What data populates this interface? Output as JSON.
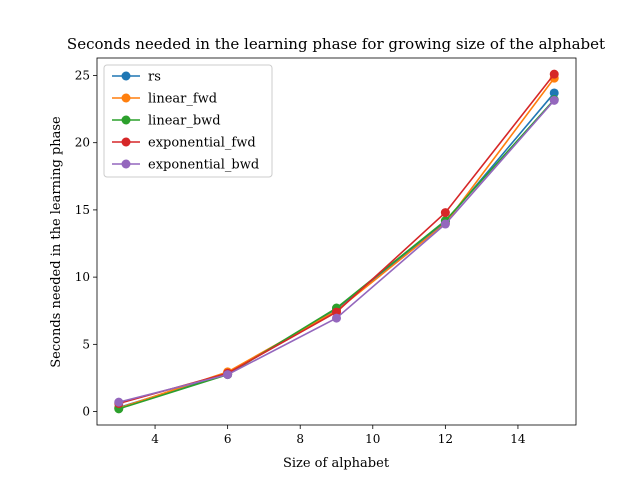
{
  "chart_data": {
    "type": "line",
    "title": "Seconds needed in the learning phase for growing size of the alphabet",
    "xlabel": "Size of alphabet",
    "ylabel": "Seconds needed in the learning phase",
    "xlim": [
      2.4,
      15.6
    ],
    "ylim": [
      -1.0,
      26.3
    ],
    "xticks": [
      4,
      6,
      8,
      10,
      12,
      14
    ],
    "yticks": [
      0,
      5,
      10,
      15,
      20,
      25
    ],
    "grid": false,
    "legend_position": "upper-left",
    "x": [
      3,
      6,
      9,
      12,
      15
    ],
    "series": [
      {
        "name": "rs",
        "color": "#1f77b4",
        "values": [
          0.3,
          2.8,
          7.6,
          14.1,
          23.7
        ]
      },
      {
        "name": "linear_fwd",
        "color": "#ff7f0e",
        "values": [
          0.25,
          2.95,
          7.5,
          14.0,
          24.8
        ]
      },
      {
        "name": "linear_bwd",
        "color": "#2ca02c",
        "values": [
          0.2,
          2.75,
          7.7,
          14.2,
          23.2
        ]
      },
      {
        "name": "exponential_fwd",
        "color": "#d62728",
        "values": [
          0.6,
          2.85,
          7.4,
          14.8,
          25.1
        ]
      },
      {
        "name": "exponential_bwd",
        "color": "#9467bd",
        "values": [
          0.7,
          2.75,
          6.95,
          13.95,
          23.15
        ]
      }
    ]
  }
}
